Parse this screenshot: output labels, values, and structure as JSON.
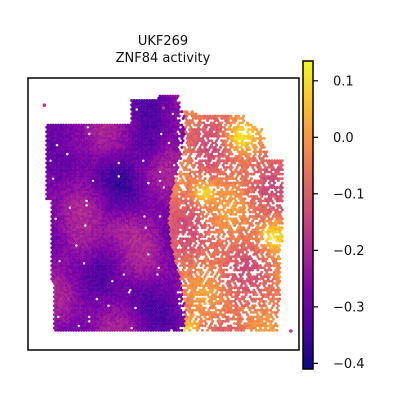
{
  "chart_data": {
    "type": "heatmap",
    "subtype": "spatial-hexbin",
    "title_line1": "UKF269",
    "title_line2": "ZNF84 activity",
    "colormap": "plasma",
    "colorbar": {
      "vmin": -0.41,
      "vmax": 0.135,
      "ticks": [
        0.1,
        0.0,
        -0.1,
        -0.2,
        -0.3,
        -0.4
      ],
      "tick_labels": [
        "0.1",
        "0.0",
        "−0.1",
        "−0.2",
        "−0.3",
        "−0.4"
      ],
      "placement": "right"
    },
    "axes": {
      "xticks": false,
      "yticks": false,
      "frame": true,
      "grid": false
    },
    "pattern": {
      "left_region_mean": -0.27,
      "right_region_mean": -0.06,
      "left_boundary_fraction": 0.55,
      "hotspot_value": 0.12
    }
  }
}
